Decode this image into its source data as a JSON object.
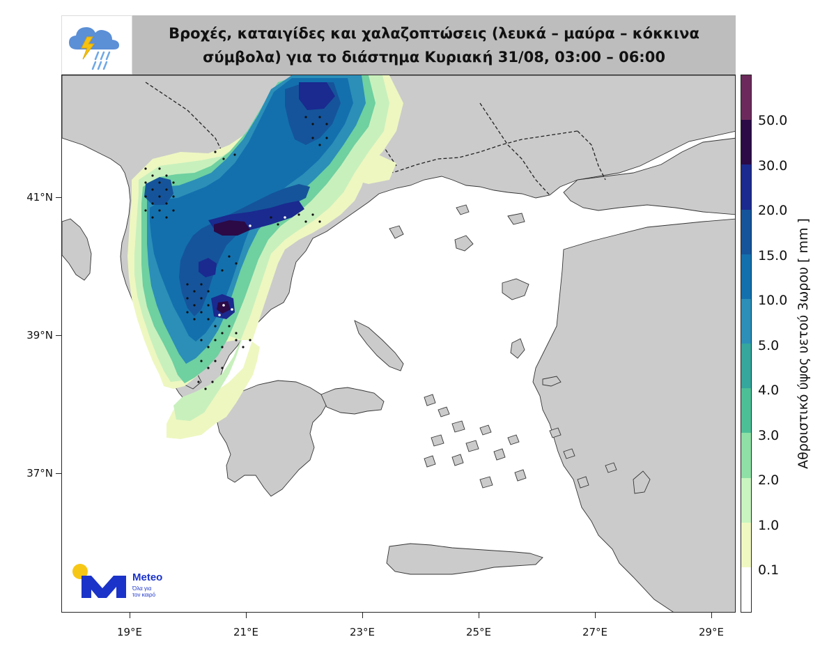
{
  "title": {
    "line1": "Βροχές, καταιγίδες και χαλαζοπτώσεις (λευκά – μαύρα – κόκκινα",
    "line2": "σύμβολα) για το διάστημα Κυριακή 31/08, 03:00 – 06:00"
  },
  "map": {
    "lat_labels": [
      "41°N",
      "39°N",
      "37°N"
    ],
    "lon_labels": [
      "19°E",
      "21°E",
      "23°E",
      "25°E",
      "27°E",
      "29°E"
    ]
  },
  "colorbar": {
    "title": "Αθροιστικό ύψος υετού 3ωρου [ mm ]",
    "labels": [
      "50.0",
      "30.0",
      "20.0",
      "15.0",
      "10.0",
      "5.0",
      "4.0",
      "3.0",
      "2.0",
      "1.0",
      "0.1"
    ],
    "colors_top_to_bottom": [
      "#6b2a5b",
      "#2b0a46",
      "#1a2a8f",
      "#15549a",
      "#1370ad",
      "#2b8fb8",
      "#35a79c",
      "#4dbf97",
      "#8ee0a6",
      "#c8f5c0",
      "#f0f8c2",
      "#ffffff"
    ]
  },
  "logo": {
    "name": "Meteo",
    "tagline_1": "Όλα για",
    "tagline_2": "τον καιρό",
    "brand_color": "#1b33c8",
    "sun_color": "#f7c716"
  },
  "icons": {
    "weather": "thunderstorm-rain-icon"
  }
}
